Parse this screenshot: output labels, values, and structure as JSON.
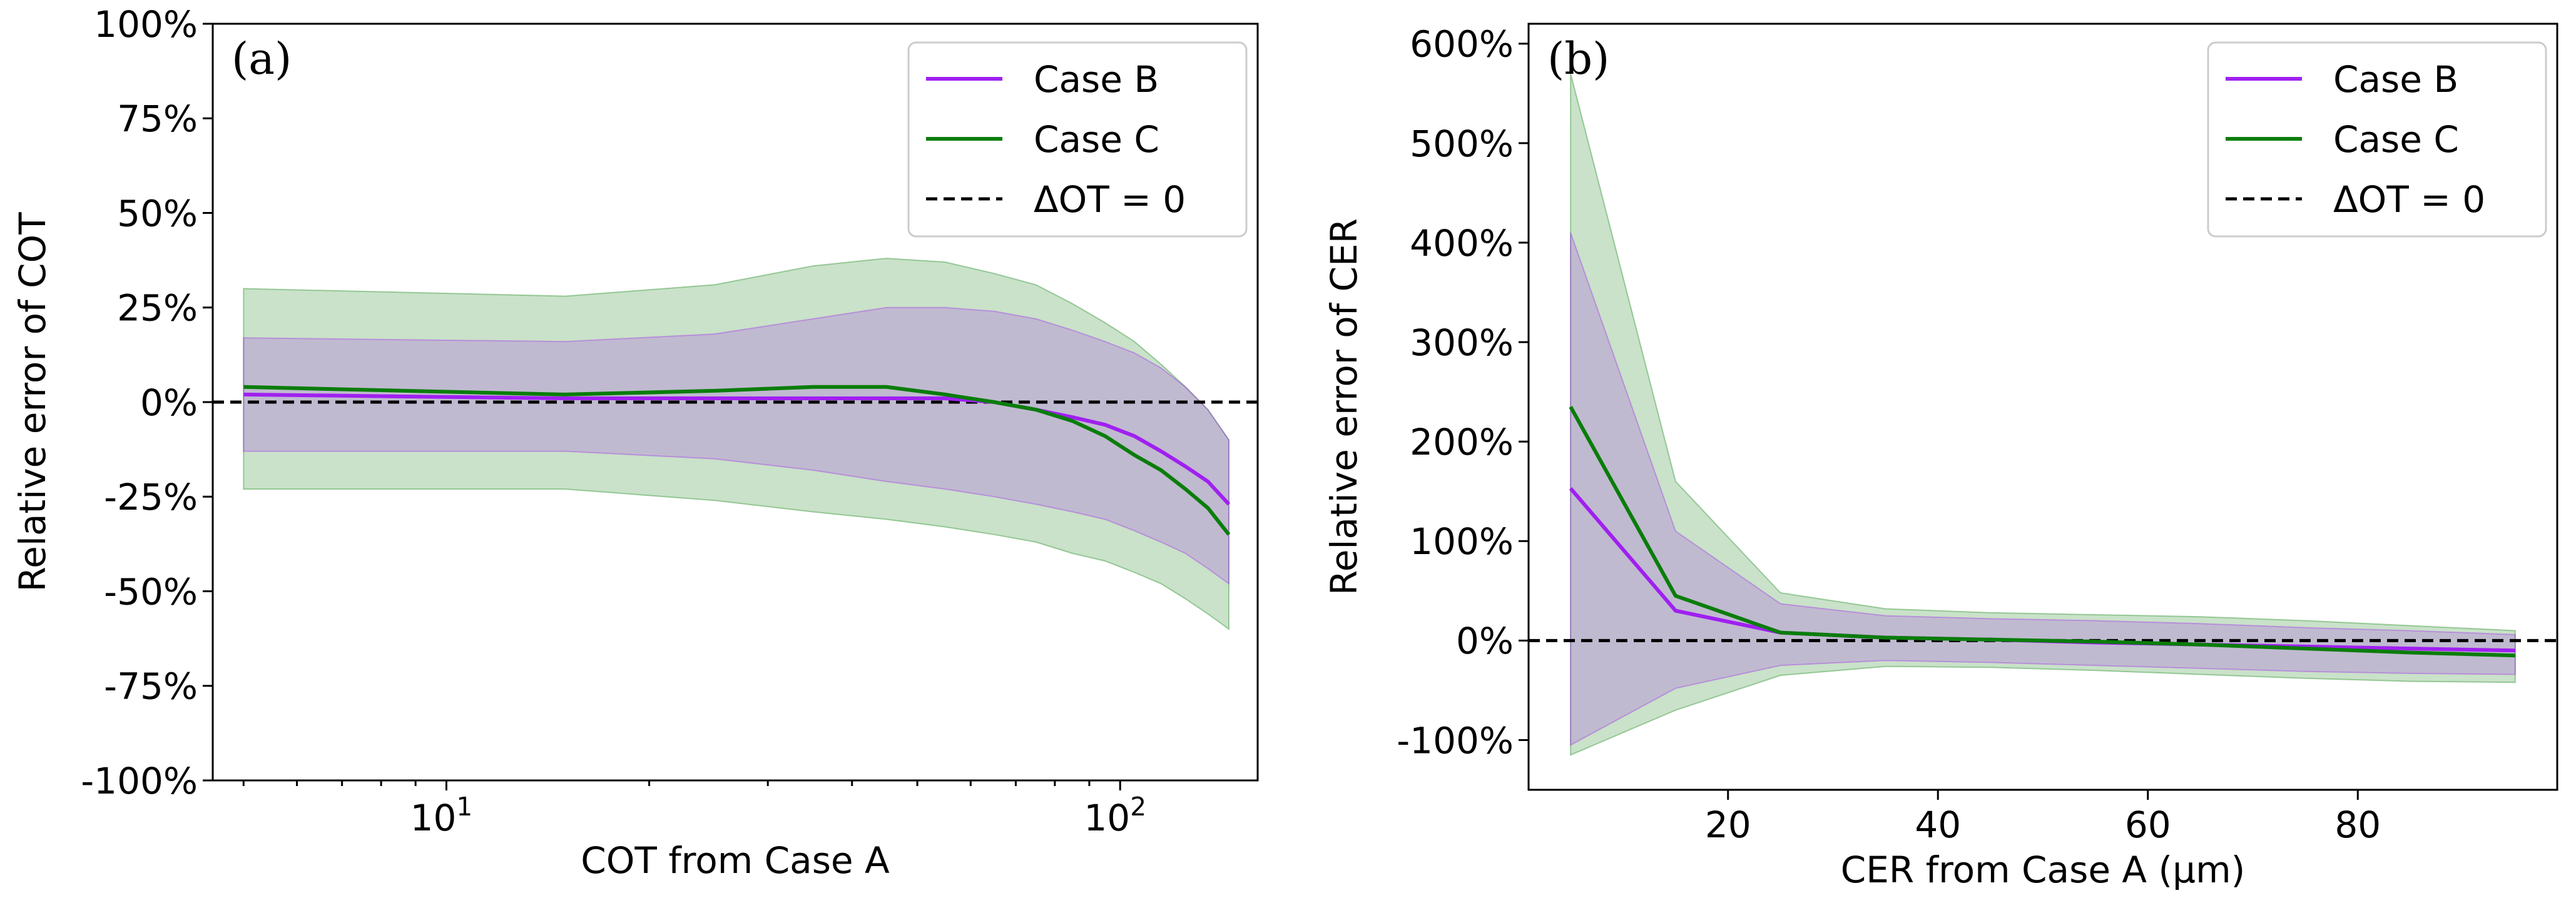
{
  "chart_data": [
    {
      "type": "line",
      "panel_label": "(a)",
      "xlabel": "COT from Case A",
      "ylabel": "Relative error of COT",
      "xscale": "log",
      "xlim": [
        4.5,
        160
      ],
      "ylim": [
        -100,
        100
      ],
      "xticks": [
        {
          "value": 10,
          "base": "10",
          "exp": "1"
        },
        {
          "value": 100,
          "base": "10",
          "exp": "2"
        }
      ],
      "yticks": [
        {
          "value": 100,
          "label": "100%"
        },
        {
          "value": 75,
          "label": "75%"
        },
        {
          "value": 50,
          "label": "50%"
        },
        {
          "value": 25,
          "label": "25%"
        },
        {
          "value": 0,
          "label": "0%"
        },
        {
          "value": -25,
          "label": "-25%"
        },
        {
          "value": -50,
          "label": "-50%"
        },
        {
          "value": -75,
          "label": "-75%"
        },
        {
          "value": -100,
          "label": "-100%"
        }
      ],
      "legend_position": "top-right",
      "series": [
        {
          "name": "Case B",
          "color": "#a020f0",
          "x": [
            5,
            15,
            25,
            35,
            45,
            55,
            65,
            75,
            85,
            95,
            105,
            115,
            125,
            135,
            145
          ],
          "y": [
            2,
            1,
            1,
            1,
            1,
            1,
            0,
            -2,
            -4,
            -6,
            -9,
            -13,
            -17,
            -21,
            -27
          ],
          "band_low": [
            -13,
            -13,
            -15,
            -18,
            -21,
            -23,
            -25,
            -27,
            -29,
            -31,
            -34,
            -37,
            -40,
            -44,
            -48
          ],
          "band_high": [
            17,
            16,
            18,
            22,
            25,
            25,
            24,
            22,
            19,
            16,
            13,
            9,
            4,
            -2,
            -10
          ]
        },
        {
          "name": "Case C",
          "color": "#0a7d0a",
          "x": [
            5,
            15,
            25,
            35,
            45,
            55,
            65,
            75,
            85,
            95,
            105,
            115,
            125,
            135,
            145
          ],
          "y": [
            4,
            2,
            3,
            4,
            4,
            2,
            0,
            -2,
            -5,
            -9,
            -14,
            -18,
            -23,
            -28,
            -35
          ],
          "band_low": [
            -23,
            -23,
            -26,
            -29,
            -31,
            -33,
            -35,
            -37,
            -40,
            -42,
            -45,
            -48,
            -52,
            -56,
            -60
          ],
          "band_high": [
            30,
            28,
            31,
            36,
            38,
            37,
            34,
            31,
            26,
            21,
            16,
            10,
            4,
            -2,
            -10
          ]
        },
        {
          "name": "ΔOT = 0",
          "color": "#000000",
          "style": "dashed",
          "x": [
            4.5,
            160
          ],
          "y": [
            0,
            0
          ]
        }
      ]
    },
    {
      "type": "line",
      "panel_label": "(b)",
      "xlabel": "CER from Case A (μm)",
      "ylabel": "Relative error of CER",
      "xscale": "linear",
      "xlim": [
        1,
        99
      ],
      "ylim": [
        -150,
        620
      ],
      "xticks": [
        {
          "value": 20,
          "label": "20"
        },
        {
          "value": 40,
          "label": "40"
        },
        {
          "value": 60,
          "label": "60"
        },
        {
          "value": 80,
          "label": "80"
        }
      ],
      "yticks": [
        {
          "value": 600,
          "label": "600%"
        },
        {
          "value": 500,
          "label": "500%"
        },
        {
          "value": 400,
          "label": "400%"
        },
        {
          "value": 300,
          "label": "300%"
        },
        {
          "value": 200,
          "label": "200%"
        },
        {
          "value": 100,
          "label": "100%"
        },
        {
          "value": 0,
          "label": "0%"
        },
        {
          "value": -100,
          "label": "-100%"
        }
      ],
      "legend_position": "top-right",
      "series": [
        {
          "name": "Case B",
          "color": "#a020f0",
          "x": [
            5,
            15,
            25,
            35,
            45,
            55,
            65,
            75,
            85,
            95
          ],
          "y": [
            153,
            30,
            8,
            3,
            1,
            -2,
            -4,
            -6,
            -8,
            -10
          ],
          "band_low": [
            -105,
            -48,
            -25,
            -20,
            -22,
            -25,
            -28,
            -31,
            -33,
            -34
          ],
          "band_high": [
            410,
            110,
            37,
            25,
            22,
            20,
            17,
            13,
            10,
            6
          ]
        },
        {
          "name": "Case C",
          "color": "#0a7d0a",
          "x": [
            5,
            15,
            25,
            35,
            45,
            55,
            65,
            75,
            85,
            95
          ],
          "y": [
            235,
            45,
            8,
            3,
            1,
            -1,
            -4,
            -8,
            -12,
            -15
          ],
          "band_low": [
            -115,
            -70,
            -35,
            -26,
            -27,
            -30,
            -34,
            -38,
            -41,
            -42
          ],
          "band_high": [
            570,
            160,
            48,
            32,
            28,
            26,
            24,
            20,
            15,
            10
          ]
        },
        {
          "name": "ΔOT = 0",
          "color": "#000000",
          "style": "dashed",
          "x": [
            1,
            99
          ],
          "y": [
            0,
            0
          ]
        }
      ]
    }
  ]
}
